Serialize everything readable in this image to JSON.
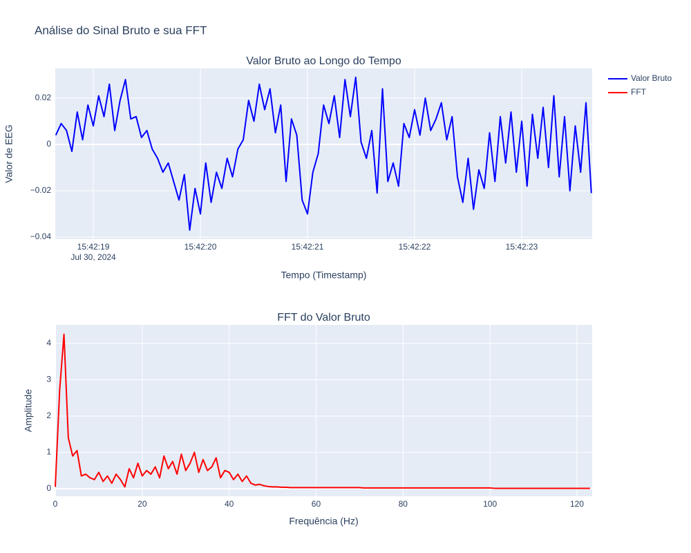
{
  "title": "Análise do Sinal Bruto e sua FFT",
  "chart_data": [
    {
      "type": "line",
      "title": "Valor Bruto ao Longo do Tempo",
      "x_label": "Tempo (Timestamp)",
      "y_label": "Valor de EEG",
      "x": [
        "15:42:18.65",
        "15:42:18.70",
        "15:42:18.75",
        "15:42:18.80",
        "15:42:18.85",
        "15:42:18.90",
        "15:42:18.95",
        "15:42:19.00",
        "15:42:19.05",
        "15:42:19.10",
        "15:42:19.15",
        "15:42:19.20",
        "15:42:19.25",
        "15:42:19.30",
        "15:42:19.35",
        "15:42:19.40",
        "15:42:19.45",
        "15:42:19.50",
        "15:42:19.55",
        "15:42:19.60",
        "15:42:19.65",
        "15:42:19.70",
        "15:42:19.75",
        "15:42:19.80",
        "15:42:19.85",
        "15:42:19.90",
        "15:42:19.95",
        "15:42:20.00",
        "15:42:20.05",
        "15:42:20.10",
        "15:42:20.15",
        "15:42:20.20",
        "15:42:20.25",
        "15:42:20.30",
        "15:42:20.35",
        "15:42:20.40",
        "15:42:20.45",
        "15:42:20.50",
        "15:42:20.55",
        "15:42:20.60",
        "15:42:20.65",
        "15:42:20.70",
        "15:42:20.75",
        "15:42:20.80",
        "15:42:20.85",
        "15:42:20.90",
        "15:42:20.95",
        "15:42:21.00",
        "15:42:21.05",
        "15:42:21.10",
        "15:42:21.15",
        "15:42:21.20",
        "15:42:21.25",
        "15:42:21.30",
        "15:42:21.35",
        "15:42:21.40",
        "15:42:21.45",
        "15:42:21.50",
        "15:42:21.55",
        "15:42:21.60",
        "15:42:21.65",
        "15:42:21.70",
        "15:42:21.75",
        "15:42:21.80",
        "15:42:21.85",
        "15:42:21.90",
        "15:42:21.95",
        "15:42:22.00",
        "15:42:22.05",
        "15:42:22.10",
        "15:42:22.15",
        "15:42:22.20",
        "15:42:22.25",
        "15:42:22.30",
        "15:42:22.35",
        "15:42:22.40",
        "15:42:22.45",
        "15:42:22.50",
        "15:42:22.55",
        "15:42:22.60",
        "15:42:22.65",
        "15:42:22.70",
        "15:42:22.75",
        "15:42:22.80",
        "15:42:22.85",
        "15:42:22.90",
        "15:42:22.95",
        "15:42:23.00",
        "15:42:23.05",
        "15:42:23.10",
        "15:42:23.15",
        "15:42:23.20",
        "15:42:23.25",
        "15:42:23.30",
        "15:42:23.35",
        "15:42:23.40",
        "15:42:23.45",
        "15:42:23.50",
        "15:42:23.55",
        "15:42:23.60",
        "15:42:23.65"
      ],
      "series": [
        {
          "name": "Valor Bruto",
          "color": "#0000ff",
          "values": [
            0.004,
            0.009,
            0.006,
            -0.003,
            0.014,
            0.002,
            0.017,
            0.008,
            0.021,
            0.012,
            0.026,
            0.006,
            0.019,
            0.028,
            0.011,
            0.012,
            0.003,
            0.006,
            -0.002,
            -0.006,
            -0.012,
            -0.008,
            -0.016,
            -0.024,
            -0.013,
            -0.037,
            -0.019,
            -0.03,
            -0.008,
            -0.025,
            -0.012,
            -0.019,
            -0.006,
            -0.014,
            -0.002,
            0.002,
            0.019,
            0.01,
            0.026,
            0.015,
            0.024,
            0.005,
            0.017,
            -0.016,
            0.011,
            0.004,
            -0.024,
            -0.03,
            -0.012,
            -0.004,
            0.017,
            0.009,
            0.021,
            0.003,
            0.028,
            0.012,
            0.029,
            0.001,
            -0.006,
            0.006,
            -0.021,
            0.024,
            -0.016,
            -0.008,
            -0.018,
            0.009,
            0.003,
            0.015,
            0.004,
            0.02,
            0.006,
            0.011,
            0.018,
            0.002,
            0.012,
            -0.014,
            -0.025,
            -0.006,
            -0.028,
            -0.011,
            -0.019,
            0.005,
            -0.016,
            0.012,
            -0.008,
            0.014,
            -0.012,
            0.01,
            -0.018,
            0.013,
            -0.006,
            0.016,
            -0.01,
            0.021,
            -0.014,
            0.012,
            -0.02,
            0.008,
            -0.012,
            0.018,
            -0.021
          ]
        }
      ],
      "xlim": [
        "15:42:18.645",
        "15:42:23.658"
      ],
      "xticks": [
        "15:42:19",
        "15:42:20",
        "15:42:21",
        "15:42:22",
        "15:42:23"
      ],
      "x_date_label": "Jul 30, 2024",
      "ylim": [
        -0.0409,
        0.0328
      ],
      "yticks": [
        {
          "value": -0.04,
          "label": "−0.04"
        },
        {
          "value": -0.02,
          "label": "−0.02"
        },
        0,
        0.02
      ],
      "grid": true
    },
    {
      "type": "line",
      "title": "FFT do Valor Bruto",
      "x_label": "Frequência (Hz)",
      "y_label": "Amplitude",
      "x": [
        0,
        1,
        2,
        3,
        4,
        5,
        6,
        7,
        8,
        9,
        10,
        11,
        12,
        13,
        14,
        15,
        16,
        17,
        18,
        19,
        20,
        21,
        22,
        23,
        24,
        25,
        26,
        27,
        28,
        29,
        30,
        31,
        32,
        33,
        34,
        35,
        36,
        37,
        38,
        39,
        40,
        41,
        42,
        43,
        44,
        45,
        46,
        47,
        48,
        49,
        50,
        51,
        52,
        53,
        54,
        55,
        56,
        57,
        58,
        59,
        60,
        61,
        62,
        63,
        64,
        65,
        66,
        67,
        68,
        69,
        70,
        71,
        72,
        73,
        74,
        75,
        76,
        77,
        78,
        79,
        80,
        81,
        82,
        83,
        84,
        85,
        86,
        87,
        88,
        89,
        90,
        91,
        92,
        93,
        94,
        95,
        96,
        97,
        98,
        99,
        100,
        101,
        102,
        103,
        104,
        105,
        106,
        107,
        108,
        109,
        110,
        111,
        112,
        113,
        114,
        115,
        116,
        117,
        118,
        119,
        120,
        121,
        122,
        123
      ],
      "series": [
        {
          "name": "FFT",
          "color": "#ff0000",
          "values": [
            0.05,
            2.7,
            4.25,
            1.4,
            0.9,
            1.05,
            0.35,
            0.4,
            0.3,
            0.25,
            0.45,
            0.2,
            0.35,
            0.15,
            0.4,
            0.25,
            0.05,
            0.55,
            0.3,
            0.7,
            0.35,
            0.5,
            0.4,
            0.6,
            0.3,
            0.9,
            0.55,
            0.75,
            0.4,
            0.95,
            0.5,
            0.7,
            1.0,
            0.45,
            0.8,
            0.5,
            0.6,
            0.85,
            0.3,
            0.5,
            0.45,
            0.25,
            0.4,
            0.2,
            0.35,
            0.15,
            0.1,
            0.12,
            0.08,
            0.06,
            0.05,
            0.05,
            0.04,
            0.04,
            0.03,
            0.03,
            0.03,
            0.03,
            0.03,
            0.03,
            0.03,
            0.03,
            0.03,
            0.03,
            0.03,
            0.03,
            0.03,
            0.03,
            0.03,
            0.03,
            0.03,
            0.02,
            0.02,
            0.02,
            0.02,
            0.02,
            0.02,
            0.02,
            0.02,
            0.02,
            0.02,
            0.02,
            0.02,
            0.02,
            0.02,
            0.02,
            0.02,
            0.02,
            0.02,
            0.02,
            0.02,
            0.02,
            0.02,
            0.02,
            0.02,
            0.02,
            0.02,
            0.02,
            0.02,
            0.02,
            0.02,
            0.01,
            0.01,
            0.01,
            0.01,
            0.01,
            0.01,
            0.01,
            0.01,
            0.01,
            0.01,
            0.01,
            0.01,
            0.01,
            0.01,
            0.01,
            0.01,
            0.01,
            0.01,
            0.01,
            0.01,
            0.01,
            0.01,
            0.01
          ]
        }
      ],
      "xlim": [
        0,
        123.5
      ],
      "xticks": [
        0,
        20,
        40,
        60,
        80,
        100,
        120
      ],
      "ylim": [
        -0.21,
        4.51
      ],
      "yticks": [
        0,
        1,
        2,
        3,
        4
      ],
      "grid": true
    }
  ]
}
